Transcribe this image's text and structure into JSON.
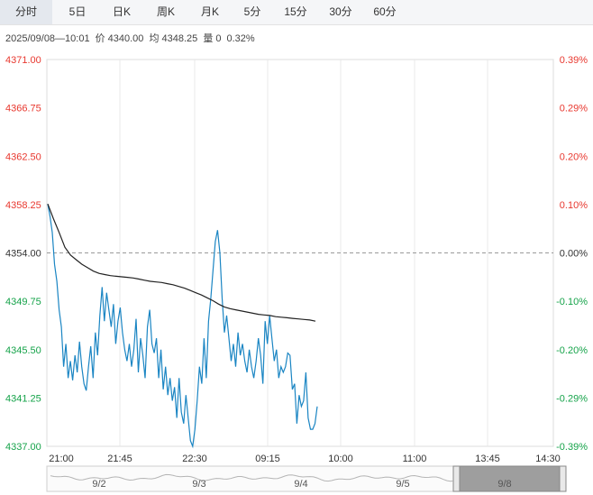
{
  "tabs": [
    {
      "label": "分时",
      "active": true
    },
    {
      "label": "5日"
    },
    {
      "label": "日K"
    },
    {
      "label": "周K"
    },
    {
      "label": "月K"
    },
    {
      "label": "5分"
    },
    {
      "label": "15分"
    },
    {
      "label": "30分"
    },
    {
      "label": "60分"
    }
  ],
  "info": {
    "datetime": "2025/09/08—10:01",
    "price_label": "价",
    "price": "4340.00",
    "avg_label": "均",
    "avg": "4348.25",
    "vol_label": "量",
    "vol": "0",
    "change": "0.32%"
  },
  "colors": {
    "up": "#e8382f",
    "down": "#16a34a",
    "price_line": "#1a85c3",
    "avg_line": "#222222",
    "axis_text": "#333333"
  },
  "chart_data": {
    "type": "line",
    "ylim": [
      4337.0,
      4371.0
    ],
    "reference_price": 4354.0,
    "y_ticks": [
      "4371.00",
      "4366.75",
      "4362.50",
      "4358.25",
      "4354.00",
      "4349.75",
      "4345.50",
      "4341.25",
      "4337.00"
    ],
    "pct_ticks": [
      "0.39%",
      "0.29%",
      "0.20%",
      "0.10%",
      "0.00%",
      "-0.10%",
      "-0.20%",
      "-0.29%",
      "-0.39%"
    ],
    "x_ticks": [
      "21:00",
      "21:45",
      "22:30",
      "09:15",
      "10:00",
      "11:00",
      "13:45",
      "14:30"
    ],
    "price_series": [
      4358.3,
      4357.2,
      4355.8,
      4353.0,
      4351.5,
      4349.0,
      4347.5,
      4344.0,
      4346.0,
      4343.0,
      4344.5,
      4342.8,
      4345.0,
      4343.5,
      4346.2,
      4344.0,
      4342.5,
      4341.9,
      4344.0,
      4345.8,
      4343.0,
      4347.0,
      4345.0,
      4348.5,
      4351.0,
      4348.0,
      4350.5,
      4349.0,
      4347.5,
      4349.5,
      4346.0,
      4348.0,
      4349.2,
      4347.0,
      4345.5,
      4344.5,
      4346.0,
      4344.0,
      4345.5,
      4348.2,
      4343.5,
      4346.5,
      4345.0,
      4343.0,
      4347.5,
      4349.0,
      4346.0,
      4345.2,
      4346.5,
      4343.0,
      4345.5,
      4342.0,
      4344.0,
      4341.5,
      4343.0,
      4341.0,
      4342.2,
      4339.5,
      4343.0,
      4340.0,
      4339.0,
      4341.5,
      4339.5,
      4337.5,
      4337.0,
      4338.5,
      4341.0,
      4344.0,
      4342.5,
      4346.5,
      4343.0,
      4348.0,
      4350.0,
      4352.5,
      4355.0,
      4356.0,
      4354.0,
      4350.0,
      4347.0,
      4348.5,
      4346.5,
      4344.5,
      4346.0,
      4344.0,
      4347.0,
      4345.0,
      4346.0,
      4344.5,
      4343.5,
      4345.5,
      4344.0,
      4343.0,
      4344.5,
      4346.5,
      4345.0,
      4342.5,
      4348.0,
      4346.0,
      4348.5,
      4346.5,
      4344.5,
      4345.5,
      4343.0,
      4344.0,
      4343.5,
      4344.0,
      4345.2,
      4345.0,
      4342.0,
      4342.5,
      4339.0,
      4341.5,
      4340.5,
      4341.0,
      4343.5,
      4339.5,
      4338.5,
      4338.5,
      4339.0,
      4340.5
    ],
    "avg_series": [
      4358.3,
      4357.0,
      4355.8,
      4354.5,
      4353.8,
      4353.4,
      4353.0,
      4352.7,
      4352.4,
      4352.2,
      4352.1,
      4352.0,
      4351.95,
      4351.9,
      4351.85,
      4351.8,
      4351.7,
      4351.6,
      4351.5,
      4351.45,
      4351.4,
      4351.3,
      4351.2,
      4351.05,
      4350.9,
      4350.7,
      4350.5,
      4350.3,
      4350.05,
      4349.8,
      4349.5,
      4349.25,
      4349.1,
      4349.0,
      4348.9,
      4348.8,
      4348.7,
      4348.6,
      4348.55,
      4348.5,
      4348.4,
      4348.35,
      4348.3,
      4348.25,
      4348.2,
      4348.15,
      4348.1,
      4348.0
    ],
    "nav_dates": [
      "9/2",
      "9/3",
      "9/4",
      "9/5",
      "9/8"
    ]
  }
}
